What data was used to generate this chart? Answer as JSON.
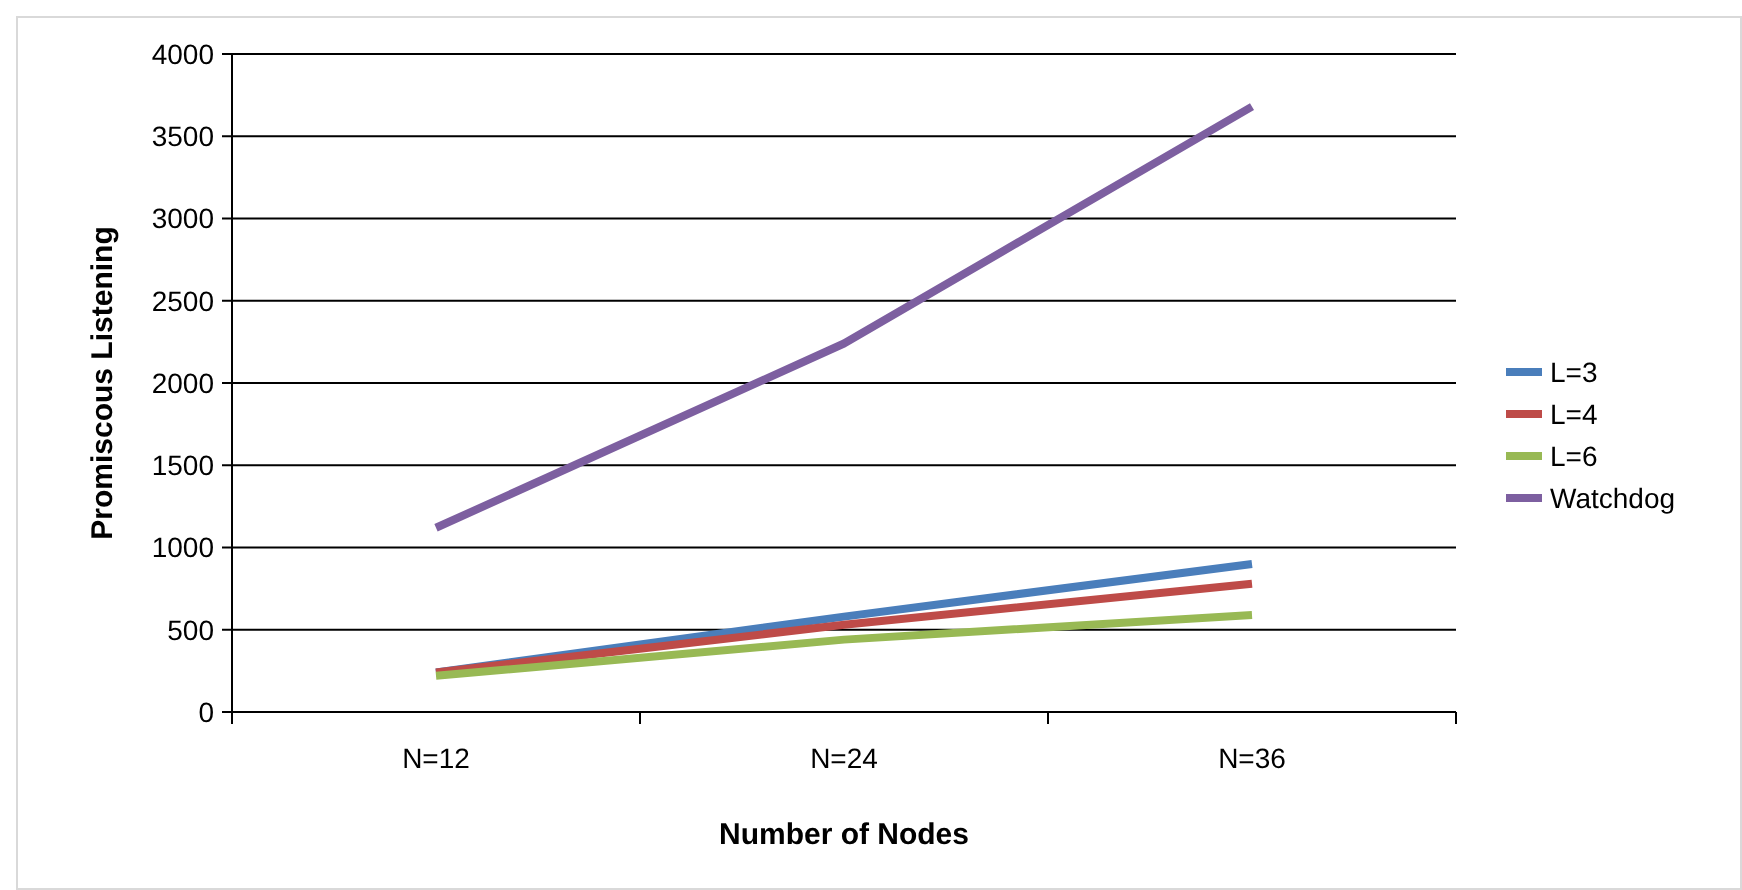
{
  "chart_data": {
    "type": "line",
    "xlabel": "Number of Nodes",
    "ylabel": "Promiscous Listening",
    "categories": [
      "N=12",
      "N=24",
      "N=36"
    ],
    "series": [
      {
        "name": "L=3",
        "color": "#4a7ebb",
        "values": [
          240,
          580,
          900
        ]
      },
      {
        "name": "L=4",
        "color": "#be4b48",
        "values": [
          240,
          530,
          780
        ]
      },
      {
        "name": "L=6",
        "color": "#98b954",
        "values": [
          220,
          440,
          590
        ]
      },
      {
        "name": "Watchdog",
        "color": "#7d5fa0",
        "values": [
          1120,
          2240,
          3680
        ]
      }
    ],
    "ylim": [
      0,
      4000
    ],
    "yticks": [
      0,
      500,
      1000,
      1500,
      2000,
      2500,
      3000,
      3500,
      4000
    ],
    "grid": "y",
    "legend": "right",
    "marker": "none",
    "line_style": "solid"
  }
}
